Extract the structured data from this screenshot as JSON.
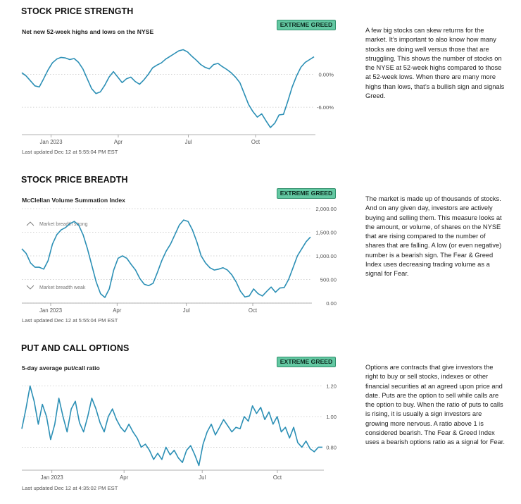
{
  "sections": [
    {
      "title": "STOCK PRICE STRENGTH",
      "subtitle": "Net new 52-week highs and lows on the NYSE",
      "badge": "EXTREME GREED",
      "updated": "Last updated Dec 12 at 5:55:04 PM EST",
      "description": "A few big stocks can skew returns for the market. It’s important to also know how many stocks are doing well versus those that are struggling. This shows the number of stocks on the NYSE at 52-week highs compared to those at 52-week lows. When there are many more highs than lows, that’s a bullish sign and signals Greed."
    },
    {
      "title": "STOCK PRICE BREADTH",
      "subtitle": "McClellan Volume Summation Index",
      "badge": "EXTREME GREED",
      "updated": "Last updated Dec 12 at 5:55:04 PM EST",
      "description": "The market is made up of thousands of stocks. And on any given day, investors are actively buying and selling them. This measure looks at the amount, or volume, of shares on the NYSE that are rising compared to the number of shares that are falling. A low (or even negative) number is a bearish sign. The Fear & Greed Index uses decreasing trading volume as a signal for Fear."
    },
    {
      "title": "PUT AND CALL OPTIONS",
      "subtitle": "5-day average put/call ratio",
      "badge": "EXTREME GREED",
      "updated": "Last updated Dec 12 at 4:35:02 PM EST",
      "description": "Options are contracts that give investors the right to buy or sell stocks, indexes or other financial securities at an agreed upon price and date. Puts are the option to sell while calls are the option to buy. When the ratio of puts to calls is rising, it is usually a sign investors are growing more nervous. A ratio above 1 is considered bearish. The Fear & Greed Index uses a bearish options ratio as a signal for Fear."
    }
  ],
  "colors": {
    "line": "#2b8fb5",
    "grid": "#c8c8c8",
    "axis": "#999999",
    "tick_text": "#555555",
    "badge_bg": "#63c8a2"
  },
  "chart_data": [
    {
      "type": "line",
      "title": "Net new 52-week highs and lows on the NYSE",
      "x_tick_labels": [
        "Jan 2023",
        "Apr",
        "Jul",
        "Oct"
      ],
      "x_tick_positions": [
        0.1,
        0.33,
        0.57,
        0.8
      ],
      "y_tick_labels": [
        "0.00%",
        "-6.00%"
      ],
      "y_tick_values": [
        0,
        -6
      ],
      "ylim": [
        -11,
        6.5
      ],
      "series": [
        {
          "name": "Net new highs/lows",
          "values": [
            0.3,
            -0.3,
            -1.2,
            -2.1,
            -2.3,
            -0.8,
            0.8,
            2.1,
            2.8,
            3.1,
            3.0,
            2.7,
            2.9,
            2.2,
            1.0,
            -0.8,
            -2.6,
            -3.5,
            -3.2,
            -2.0,
            -0.5,
            0.5,
            -0.5,
            -1.5,
            -0.8,
            -0.5,
            -1.3,
            -1.8,
            -1.0,
            0.0,
            1.2,
            1.7,
            2.1,
            2.8,
            3.3,
            3.8,
            4.3,
            4.5,
            4.1,
            3.3,
            2.6,
            1.8,
            1.3,
            1.0,
            1.8,
            2.0,
            1.4,
            0.9,
            0.3,
            -0.5,
            -1.5,
            -3.5,
            -5.5,
            -6.8,
            -7.8,
            -7.2,
            -8.5,
            -9.7,
            -8.9,
            -7.4,
            -7.3,
            -4.9,
            -2.3,
            -0.3,
            1.3,
            2.2,
            2.7,
            3.2
          ]
        }
      ]
    },
    {
      "type": "line",
      "title": "McClellan Volume Summation Index",
      "x_tick_labels": [
        "Jan 2023",
        "Apr",
        "Jul",
        "Oct"
      ],
      "x_tick_positions": [
        0.1,
        0.33,
        0.57,
        0.8
      ],
      "y_tick_labels": [
        "2,000.00",
        "1,500.00",
        "1,000.00",
        "500.00",
        "0.00"
      ],
      "y_tick_values": [
        2000,
        1500,
        1000,
        500,
        0
      ],
      "ylim": [
        0,
        2000
      ],
      "annotations": [
        {
          "text": "Market breadth strong",
          "icon": "chevron-up-icon"
        },
        {
          "text": "Market breadth weak",
          "icon": "chevron-down-icon"
        }
      ],
      "series": [
        {
          "name": "Summation index",
          "values": [
            1150,
            1050,
            850,
            760,
            760,
            720,
            900,
            1250,
            1450,
            1550,
            1600,
            1680,
            1730,
            1650,
            1450,
            1150,
            800,
            450,
            200,
            120,
            300,
            700,
            950,
            1000,
            950,
            820,
            700,
            520,
            400,
            370,
            420,
            650,
            900,
            1100,
            1250,
            1450,
            1650,
            1760,
            1730,
            1550,
            1300,
            1000,
            850,
            750,
            700,
            720,
            750,
            700,
            600,
            450,
            250,
            130,
            150,
            300,
            200,
            150,
            250,
            340,
            230,
            320,
            330,
            500,
            750,
            1000,
            1150,
            1300,
            1400
          ]
        }
      ]
    },
    {
      "type": "line",
      "title": "5-day average put/call ratio",
      "x_tick_labels": [
        "Jan 2023",
        "Apr",
        "Jul",
        "Oct"
      ],
      "x_tick_positions": [
        0.1,
        0.34,
        0.6,
        0.85
      ],
      "y_tick_labels": [
        "1.20",
        "1.00",
        "0.80"
      ],
      "y_tick_values": [
        1.2,
        1.0,
        0.8
      ],
      "ylim": [
        0.65,
        1.23
      ],
      "series": [
        {
          "name": "Put/call ratio",
          "values": [
            0.92,
            1.05,
            1.2,
            1.1,
            0.95,
            1.08,
            1.0,
            0.85,
            0.95,
            1.12,
            1.0,
            0.9,
            1.05,
            1.1,
            0.96,
            0.9,
            1.0,
            1.12,
            1.05,
            0.96,
            0.9,
            1.0,
            1.05,
            0.98,
            0.93,
            0.9,
            0.95,
            0.9,
            0.86,
            0.8,
            0.82,
            0.78,
            0.72,
            0.76,
            0.72,
            0.8,
            0.75,
            0.78,
            0.73,
            0.7,
            0.78,
            0.81,
            0.75,
            0.68,
            0.82,
            0.9,
            0.95,
            0.88,
            0.93,
            0.98,
            0.94,
            0.9,
            0.93,
            0.92,
            1.0,
            0.97,
            1.07,
            1.02,
            1.06,
            0.98,
            1.03,
            0.95,
            1.0,
            0.9,
            0.93,
            0.86,
            0.93,
            0.83,
            0.8,
            0.84,
            0.79,
            0.77,
            0.8,
            0.8
          ]
        }
      ]
    }
  ]
}
